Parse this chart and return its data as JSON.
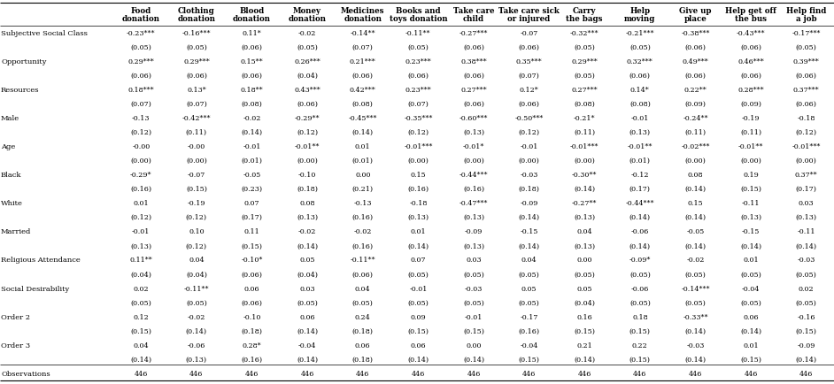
{
  "col_headers": [
    [
      "Food",
      "donation"
    ],
    [
      "Clothing",
      "donation"
    ],
    [
      "Blood",
      "donation"
    ],
    [
      "Money",
      "donation"
    ],
    [
      "Medicines",
      "donation"
    ],
    [
      "Books and",
      "toys donation"
    ],
    [
      "Take care",
      "child"
    ],
    [
      "Take care sick",
      "or injured"
    ],
    [
      "Carry",
      "the bags"
    ],
    [
      "Help",
      "moving"
    ],
    [
      "Give up",
      "place"
    ],
    [
      "Help get off",
      "the bus"
    ],
    [
      "Help find",
      "a job"
    ]
  ],
  "data": [
    [
      "-0.23***",
      "-0.16***",
      "0.11*",
      "-0.02",
      "-0.14**",
      "-0.11**",
      "-0.27***",
      "-0.07",
      "-0.32***",
      "-0.21***",
      "-0.38***",
      "-0.43***",
      "-0.17***"
    ],
    [
      "(0.05)",
      "(0.05)",
      "(0.06)",
      "(0.05)",
      "(0.07)",
      "(0.05)",
      "(0.06)",
      "(0.06)",
      "(0.05)",
      "(0.05)",
      "(0.06)",
      "(0.06)",
      "(0.05)"
    ],
    [
      "0.29***",
      "0.29***",
      "0.15**",
      "0.26***",
      "0.21***",
      "0.23***",
      "0.38***",
      "0.35***",
      "0.29***",
      "0.32***",
      "0.49***",
      "0.46***",
      "0.39***"
    ],
    [
      "(0.06)",
      "(0.06)",
      "(0.06)",
      "(0.04)",
      "(0.06)",
      "(0.06)",
      "(0.06)",
      "(0.07)",
      "(0.05)",
      "(0.06)",
      "(0.06)",
      "(0.06)",
      "(0.06)"
    ],
    [
      "0.18***",
      "0.13*",
      "0.18**",
      "0.43***",
      "0.42***",
      "0.23***",
      "0.27***",
      "0.12*",
      "0.27***",
      "0.14*",
      "0.22**",
      "0.28***",
      "0.37***"
    ],
    [
      "(0.07)",
      "(0.07)",
      "(0.08)",
      "(0.06)",
      "(0.08)",
      "(0.07)",
      "(0.06)",
      "(0.06)",
      "(0.08)",
      "(0.08)",
      "(0.09)",
      "(0.09)",
      "(0.06)"
    ],
    [
      "-0.13",
      "-0.42***",
      "-0.02",
      "-0.29**",
      "-0.45***",
      "-0.35***",
      "-0.60***",
      "-0.50***",
      "-0.21*",
      "-0.01",
      "-0.24**",
      "-0.19",
      "-0.18"
    ],
    [
      "(0.12)",
      "(0.11)",
      "(0.14)",
      "(0.12)",
      "(0.14)",
      "(0.12)",
      "(0.13)",
      "(0.12)",
      "(0.11)",
      "(0.13)",
      "(0.11)",
      "(0.11)",
      "(0.12)"
    ],
    [
      "-0.00",
      "-0.00",
      "-0.01",
      "-0.01**",
      "0.01",
      "-0.01***",
      "-0.01*",
      "-0.01",
      "-0.01***",
      "-0.01**",
      "-0.02***",
      "-0.01**",
      "-0.01***"
    ],
    [
      "(0.00)",
      "(0.00)",
      "(0.01)",
      "(0.00)",
      "(0.01)",
      "(0.00)",
      "(0.00)",
      "(0.00)",
      "(0.00)",
      "(0.01)",
      "(0.00)",
      "(0.00)",
      "(0.00)"
    ],
    [
      "-0.29*",
      "-0.07",
      "-0.05",
      "-0.10",
      "0.00",
      "0.15",
      "-0.44***",
      "-0.03",
      "-0.30**",
      "-0.12",
      "0.08",
      "0.19",
      "0.37**"
    ],
    [
      "(0.16)",
      "(0.15)",
      "(0.23)",
      "(0.18)",
      "(0.21)",
      "(0.16)",
      "(0.16)",
      "(0.18)",
      "(0.14)",
      "(0.17)",
      "(0.14)",
      "(0.15)",
      "(0.17)"
    ],
    [
      "0.01",
      "-0.19",
      "0.07",
      "0.08",
      "-0.13",
      "-0.18",
      "-0.47***",
      "-0.09",
      "-0.27**",
      "-0.44***",
      "0.15",
      "-0.11",
      "0.03"
    ],
    [
      "(0.12)",
      "(0.12)",
      "(0.17)",
      "(0.13)",
      "(0.16)",
      "(0.13)",
      "(0.13)",
      "(0.14)",
      "(0.13)",
      "(0.14)",
      "(0.14)",
      "(0.13)",
      "(0.13)"
    ],
    [
      "-0.01",
      "0.10",
      "0.11",
      "-0.02",
      "-0.02",
      "0.01",
      "-0.09",
      "-0.15",
      "0.04",
      "-0.06",
      "-0.05",
      "-0.15",
      "-0.11"
    ],
    [
      "(0.13)",
      "(0.12)",
      "(0.15)",
      "(0.14)",
      "(0.16)",
      "(0.14)",
      "(0.13)",
      "(0.14)",
      "(0.13)",
      "(0.14)",
      "(0.14)",
      "(0.14)",
      "(0.14)"
    ],
    [
      "0.11**",
      "0.04",
      "-0.10*",
      "0.05",
      "-0.11**",
      "0.07",
      "0.03",
      "0.04",
      "0.00",
      "-0.09*",
      "-0.02",
      "0.01",
      "-0.03"
    ],
    [
      "(0.04)",
      "(0.04)",
      "(0.06)",
      "(0.04)",
      "(0.06)",
      "(0.05)",
      "(0.05)",
      "(0.05)",
      "(0.05)",
      "(0.05)",
      "(0.05)",
      "(0.05)",
      "(0.05)"
    ],
    [
      "0.02",
      "-0.11**",
      "0.06",
      "0.03",
      "0.04",
      "-0.01",
      "-0.03",
      "0.05",
      "0.05",
      "-0.06",
      "-0.14***",
      "-0.04",
      "0.02"
    ],
    [
      "(0.05)",
      "(0.05)",
      "(0.06)",
      "(0.05)",
      "(0.05)",
      "(0.05)",
      "(0.05)",
      "(0.05)",
      "(0.04)",
      "(0.05)",
      "(0.05)",
      "(0.05)",
      "(0.05)"
    ],
    [
      "0.12",
      "-0.02",
      "-0.10",
      "0.06",
      "0.24",
      "0.09",
      "-0.01",
      "-0.17",
      "0.16",
      "0.18",
      "-0.33**",
      "0.06",
      "-0.16"
    ],
    [
      "(0.15)",
      "(0.14)",
      "(0.18)",
      "(0.14)",
      "(0.18)",
      "(0.15)",
      "(0.15)",
      "(0.16)",
      "(0.15)",
      "(0.15)",
      "(0.14)",
      "(0.14)",
      "(0.15)"
    ],
    [
      "0.04",
      "-0.06",
      "0.28*",
      "-0.04",
      "0.06",
      "0.06",
      "0.00",
      "-0.04",
      "0.21",
      "0.22",
      "-0.03",
      "0.01",
      "-0.09"
    ],
    [
      "(0.14)",
      "(0.13)",
      "(0.16)",
      "(0.14)",
      "(0.18)",
      "(0.14)",
      "(0.14)",
      "(0.15)",
      "(0.14)",
      "(0.15)",
      "(0.14)",
      "(0.15)",
      "(0.14)"
    ],
    [
      "446",
      "446",
      "446",
      "446",
      "446",
      "446",
      "446",
      "446",
      "446",
      "446",
      "446",
      "446",
      "446"
    ]
  ],
  "row_labels": [
    "Subjective Social Class",
    null,
    "Opportunity",
    null,
    "Resources",
    null,
    "Male",
    null,
    "Age",
    null,
    "Black",
    null,
    "White",
    null,
    "Married",
    null,
    "Religious Attendance",
    null,
    "Social Desirability",
    null,
    "Order 2",
    null,
    "Order 3",
    null,
    "Observations"
  ],
  "bg_color": "#ffffff",
  "text_color": "#000000",
  "line_color": "#000000",
  "font_size_header": 6.2,
  "font_size_data": 5.8,
  "font_size_label": 6.0
}
